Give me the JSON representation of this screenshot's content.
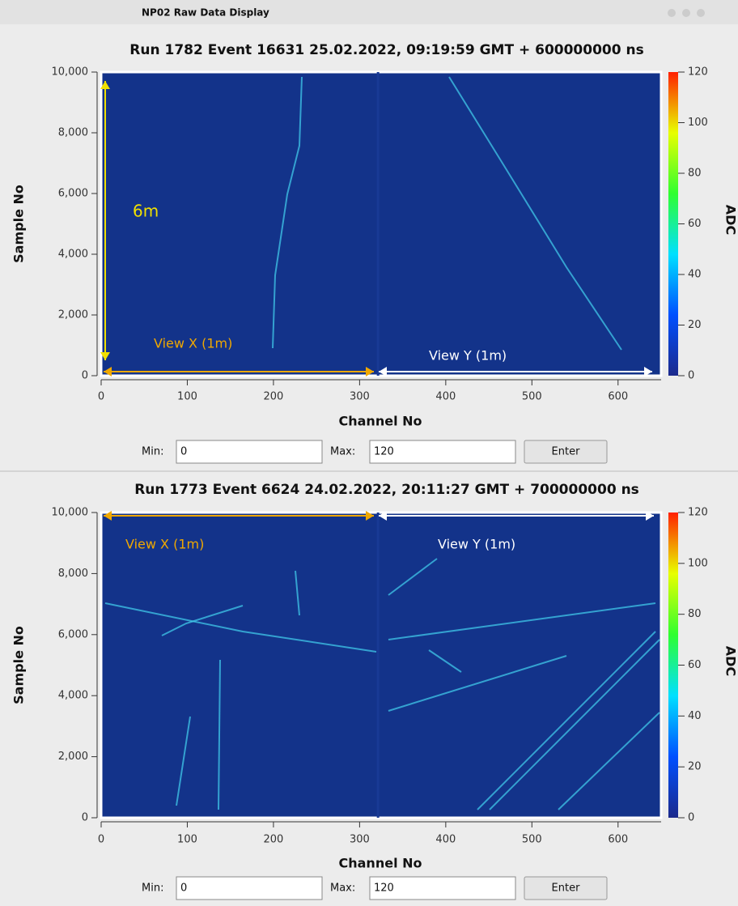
{
  "window": {
    "title": "NP02 Raw Data Display"
  },
  "chart_data": [
    {
      "type": "heatmap",
      "title": "Run 1782 Event 16631 25.02.2022, 09:19:59 GMT + 600000000 ns",
      "xlabel": "Channel No",
      "ylabel": "Sample No",
      "colorbar_label": "ADC",
      "xlim": [
        0,
        650
      ],
      "xticks": [
        0,
        100,
        200,
        300,
        400,
        500,
        600
      ],
      "ylim": [
        0,
        10000
      ],
      "yticks": [
        0,
        {
          "value": 2000,
          "label": "2,000"
        },
        {
          "value": 4000,
          "label": "4,000"
        },
        {
          "value": 6000,
          "label": "6,000"
        },
        {
          "value": 8000,
          "label": "8,000"
        },
        {
          "value": 10000,
          "label": "10,000"
        }
      ],
      "clim": [
        0,
        120
      ],
      "cticks": [
        0,
        20,
        40,
        60,
        80,
        100,
        120
      ],
      "colormap": [
        "#1c2a8c",
        "#0050ff",
        "#00e0ff",
        "#30ff30",
        "#e8ff00",
        "#ff2000"
      ],
      "annotations": [
        {
          "text": "6m",
          "color": "#f0e000"
        },
        {
          "text": "View X (1m)",
          "color": "#f0a800"
        },
        {
          "text": "View Y (1m)",
          "color": "#ffffff"
        }
      ],
      "controls": {
        "min_label": "Min:",
        "min_value": "0",
        "max_label": "Max:",
        "max_value": "120",
        "button": "Enter"
      }
    },
    {
      "type": "heatmap",
      "title": "Run 1773 Event 6624 24.02.2022, 20:11:27 GMT + 700000000 ns",
      "xlabel": "Channel No",
      "ylabel": "Sample No",
      "colorbar_label": "ADC",
      "xlim": [
        0,
        650
      ],
      "xticks": [
        0,
        100,
        200,
        300,
        400,
        500,
        600
      ],
      "ylim": [
        0,
        10000
      ],
      "yticks": [
        0,
        {
          "value": 2000,
          "label": "2,000"
        },
        {
          "value": 4000,
          "label": "4,000"
        },
        {
          "value": 6000,
          "label": "6,000"
        },
        {
          "value": 8000,
          "label": "8,000"
        },
        {
          "value": 10000,
          "label": "10,000"
        }
      ],
      "clim": [
        0,
        120
      ],
      "cticks": [
        0,
        20,
        40,
        60,
        80,
        100,
        120
      ],
      "colormap": [
        "#1c2a8c",
        "#0050ff",
        "#00e0ff",
        "#30ff30",
        "#e8ff00",
        "#ff2000"
      ],
      "annotations": [
        {
          "text": "View X (1m)",
          "color": "#f0a800"
        },
        {
          "text": "View Y (1m)",
          "color": "#ffffff"
        }
      ],
      "controls": {
        "min_label": "Min:",
        "min_value": "0",
        "max_label": "Max:",
        "max_value": "120",
        "button": "Enter"
      }
    }
  ]
}
